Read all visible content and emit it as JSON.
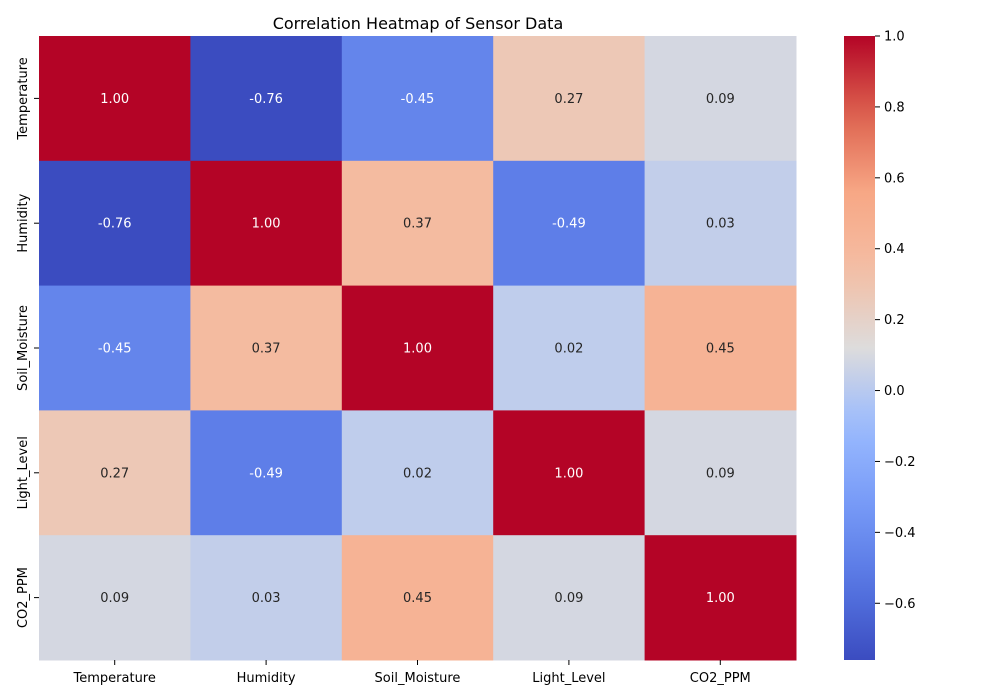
{
  "chart_data": {
    "type": "heatmap",
    "title": "Correlation Heatmap of Sensor Data",
    "xlabel": "",
    "ylabel": "",
    "x_categories": [
      "Temperature",
      "Humidity",
      "Soil_Moisture",
      "Light_Level",
      "CO2_PPM"
    ],
    "y_categories": [
      "Temperature",
      "Humidity",
      "Soil_Moisture",
      "Light_Level",
      "CO2_PPM"
    ],
    "values": [
      [
        1.0,
        -0.76,
        -0.45,
        0.27,
        0.09
      ],
      [
        -0.76,
        1.0,
        0.37,
        -0.49,
        0.03
      ],
      [
        -0.45,
        0.37,
        1.0,
        0.02,
        0.45
      ],
      [
        0.27,
        -0.49,
        0.02,
        1.0,
        0.09
      ],
      [
        0.09,
        0.03,
        0.45,
        0.09,
        1.0
      ]
    ],
    "value_format": "0.00",
    "colormap": "coolwarm",
    "colorbar": {
      "range": [
        -0.76,
        1.0
      ],
      "ticks": [
        -0.6,
        -0.4,
        -0.2,
        0.0,
        0.2,
        0.4,
        0.6,
        0.8,
        1.0
      ],
      "tick_labels": [
        "−0.6",
        "−0.4",
        "−0.2",
        "0.0",
        "0.2",
        "0.4",
        "0.6",
        "0.8",
        "1.0"
      ]
    },
    "grid": false,
    "legend": "colorbar-right"
  }
}
